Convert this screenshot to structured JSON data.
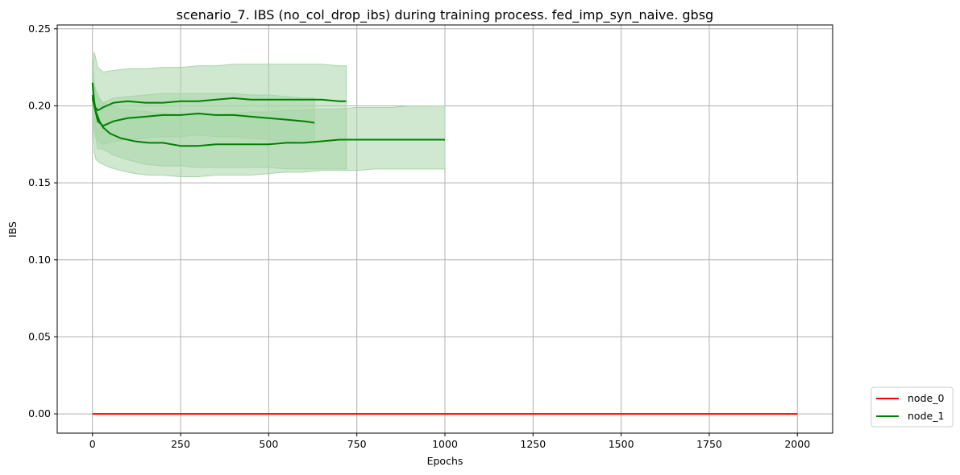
{
  "chart_data": {
    "type": "line",
    "title": "scenario_7. IBS (no_col_drop_ibs) during training process. fed_imp_syn_naive. gbsg",
    "xlabel": "Epochs",
    "ylabel": "IBS",
    "xlim": [
      -100,
      2100
    ],
    "ylim": [
      -0.0125,
      0.2525
    ],
    "x_ticks": [
      0,
      250,
      500,
      750,
      1000,
      1250,
      1500,
      1750,
      2000
    ],
    "y_ticks": [
      0.0,
      0.05,
      0.1,
      0.15,
      0.2,
      0.25
    ],
    "y_tick_labels": [
      "0.00",
      "0.05",
      "0.10",
      "0.15",
      "0.20",
      "0.25"
    ],
    "grid": true,
    "legend_placement": "outside-lower-right",
    "series": [
      {
        "name": "node_0",
        "color": "#ff0000",
        "runs": [
          {
            "x": [
              0,
              2000
            ],
            "y": [
              0.0,
              0.0
            ]
          }
        ]
      },
      {
        "name": "node_1",
        "color": "#008000",
        "band_color": "#a8d5a8",
        "runs": [
          {
            "x": [
              0,
              5,
              15,
              30,
              60,
              100,
              150,
              200,
              250,
              300,
              350,
              400,
              450,
              500,
              550,
              600,
              650,
              700,
              720
            ],
            "y": [
              0.205,
              0.2,
              0.197,
              0.199,
              0.202,
              0.203,
              0.202,
              0.202,
              0.203,
              0.203,
              0.204,
              0.205,
              0.204,
              0.204,
              0.204,
              0.204,
              0.204,
              0.203,
              0.203
            ],
            "band_upper": [
              0.22,
              0.235,
              0.225,
              0.222,
              0.223,
              0.224,
              0.224,
              0.225,
              0.225,
              0.226,
              0.226,
              0.227,
              0.227,
              0.227,
              0.227,
              0.227,
              0.227,
              0.226,
              0.226
            ],
            "band_lower": [
              0.19,
              0.185,
              0.172,
              0.172,
              0.168,
              0.165,
              0.162,
              0.161,
              0.161,
              0.16,
              0.16,
              0.16,
              0.16,
              0.16,
              0.159,
              0.159,
              0.159,
              0.159,
              0.159
            ]
          },
          {
            "x": [
              0,
              5,
              15,
              30,
              60,
              100,
              150,
              200,
              250,
              300,
              350,
              400,
              450,
              500,
              550,
              600,
              630
            ],
            "y": [
              0.207,
              0.2,
              0.19,
              0.187,
              0.19,
              0.192,
              0.193,
              0.194,
              0.194,
              0.195,
              0.194,
              0.194,
              0.193,
              0.192,
              0.191,
              0.19,
              0.189
            ],
            "band_upper": [
              0.215,
              0.212,
              0.205,
              0.202,
              0.205,
              0.206,
              0.207,
              0.208,
              0.208,
              0.208,
              0.208,
              0.208,
              0.207,
              0.207,
              0.206,
              0.205,
              0.205
            ],
            "band_lower": [
              0.199,
              0.19,
              0.178,
              0.175,
              0.177,
              0.178,
              0.179,
              0.18,
              0.18,
              0.181,
              0.18,
              0.18,
              0.179,
              0.178,
              0.177,
              0.176,
              0.176
            ]
          },
          {
            "x": [
              0,
              5,
              10,
              20,
              30,
              50,
              80,
              120,
              160,
              200,
              250,
              300,
              350,
              400,
              450,
              500,
              550,
              600,
              650,
              700,
              750,
              800,
              850,
              900,
              950,
              1000
            ],
            "y": [
              0.215,
              0.203,
              0.196,
              0.19,
              0.186,
              0.182,
              0.179,
              0.177,
              0.176,
              0.176,
              0.174,
              0.174,
              0.175,
              0.175,
              0.175,
              0.175,
              0.176,
              0.176,
              0.177,
              0.178,
              0.178,
              0.178,
              0.178,
              0.178,
              0.178,
              0.178
            ],
            "band_upper": [
              0.23,
              0.215,
              0.21,
              0.205,
              0.202,
              0.2,
              0.198,
              0.197,
              0.196,
              0.195,
              0.194,
              0.194,
              0.194,
              0.195,
              0.196,
              0.196,
              0.197,
              0.197,
              0.198,
              0.198,
              0.199,
              0.199,
              0.199,
              0.2,
              0.2,
              0.2
            ],
            "band_lower": [
              0.2,
              0.17,
              0.165,
              0.163,
              0.162,
              0.16,
              0.158,
              0.156,
              0.155,
              0.155,
              0.154,
              0.154,
              0.155,
              0.155,
              0.155,
              0.156,
              0.157,
              0.157,
              0.158,
              0.158,
              0.158,
              0.159,
              0.159,
              0.159,
              0.159,
              0.159
            ]
          }
        ]
      }
    ]
  }
}
